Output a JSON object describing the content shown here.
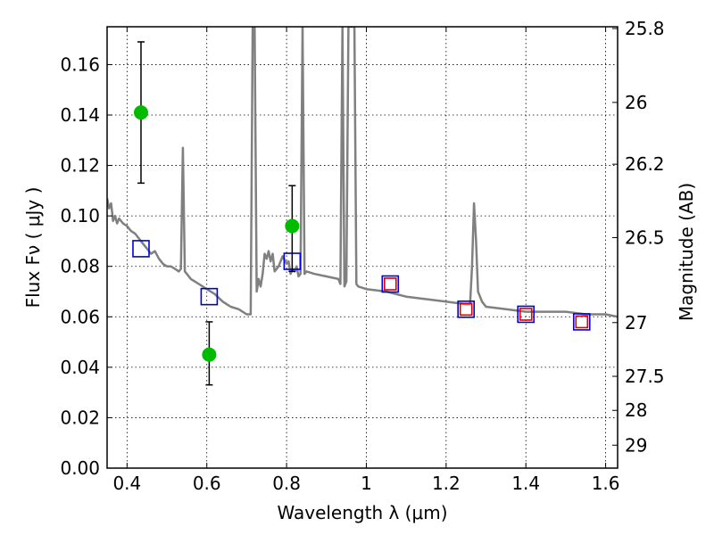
{
  "chart_data": {
    "type": "scatter",
    "xlabel": "Wavelength  λ (μm)",
    "ylabel": "Flux  Fν  ( μJy )",
    "ylabel_right": "Magnitude (AB)",
    "xlim": [
      0.35,
      1.63
    ],
    "ylim": [
      0.0,
      0.175
    ],
    "grid": true,
    "x_ticks": [
      0.4,
      0.6,
      0.8,
      1.0,
      1.2,
      1.4,
      1.6
    ],
    "x_tick_labels": [
      "0.4",
      "0.6",
      "0.8",
      "1",
      "1.2",
      "1.4",
      "1.6"
    ],
    "y_ticks": [
      0.0,
      0.02,
      0.04,
      0.06,
      0.08,
      0.1,
      0.12,
      0.14,
      0.16
    ],
    "y_tick_labels": [
      "0.00",
      "0.02",
      "0.04",
      "0.06",
      "0.08",
      "0.10",
      "0.12",
      "0.14",
      "0.16"
    ],
    "right_ticks": [
      {
        "label": "25.8",
        "flux": 0.1743
      },
      {
        "label": "26",
        "flux": 0.145
      },
      {
        "label": "26.2",
        "flux": 0.1205
      },
      {
        "label": "26.5",
        "flux": 0.0914
      },
      {
        "label": "27",
        "flux": 0.0577
      },
      {
        "label": "27.5",
        "flux": 0.0364
      },
      {
        "label": "28",
        "flux": 0.0229
      },
      {
        "label": "29",
        "flux": 0.0091
      }
    ],
    "series": [
      {
        "style": "line",
        "color": "#808080",
        "points": [
          [
            0.35,
            0.107
          ],
          [
            0.355,
            0.103
          ],
          [
            0.36,
            0.105
          ],
          [
            0.365,
            0.098
          ],
          [
            0.37,
            0.1
          ],
          [
            0.375,
            0.097
          ],
          [
            0.38,
            0.099
          ],
          [
            0.39,
            0.097
          ],
          [
            0.4,
            0.096
          ],
          [
            0.41,
            0.094
          ],
          [
            0.42,
            0.093
          ],
          [
            0.43,
            0.091
          ],
          [
            0.44,
            0.089
          ],
          [
            0.45,
            0.087
          ],
          [
            0.46,
            0.085
          ],
          [
            0.47,
            0.086
          ],
          [
            0.48,
            0.083
          ],
          [
            0.49,
            0.081
          ],
          [
            0.5,
            0.08
          ],
          [
            0.51,
            0.08
          ],
          [
            0.52,
            0.079
          ],
          [
            0.53,
            0.078
          ],
          [
            0.535,
            0.079
          ],
          [
            0.54,
            0.127
          ],
          [
            0.545,
            0.078
          ],
          [
            0.55,
            0.077
          ],
          [
            0.56,
            0.075
          ],
          [
            0.57,
            0.074
          ],
          [
            0.58,
            0.073
          ],
          [
            0.6,
            0.071
          ],
          [
            0.62,
            0.069
          ],
          [
            0.64,
            0.066
          ],
          [
            0.66,
            0.064
          ],
          [
            0.68,
            0.063
          ],
          [
            0.7,
            0.061
          ],
          [
            0.71,
            0.061
          ],
          [
            0.715,
            0.175
          ],
          [
            0.72,
            0.175
          ],
          [
            0.725,
            0.07
          ],
          [
            0.73,
            0.075
          ],
          [
            0.735,
            0.072
          ],
          [
            0.74,
            0.077
          ],
          [
            0.745,
            0.085
          ],
          [
            0.75,
            0.083
          ],
          [
            0.755,
            0.086
          ],
          [
            0.76,
            0.082
          ],
          [
            0.765,
            0.085
          ],
          [
            0.77,
            0.078
          ],
          [
            0.78,
            0.08
          ],
          [
            0.79,
            0.084
          ],
          [
            0.8,
            0.081
          ],
          [
            0.805,
            0.082
          ],
          [
            0.81,
            0.077
          ],
          [
            0.815,
            0.079
          ],
          [
            0.82,
            0.078
          ],
          [
            0.825,
            0.08
          ],
          [
            0.83,
            0.076
          ],
          [
            0.835,
            0.077
          ],
          [
            0.84,
            0.175
          ],
          [
            0.845,
            0.077
          ],
          [
            0.85,
            0.078
          ],
          [
            0.87,
            0.077
          ],
          [
            0.9,
            0.076
          ],
          [
            0.93,
            0.075
          ],
          [
            0.935,
            0.073
          ],
          [
            0.94,
            0.175
          ],
          [
            0.945,
            0.072
          ],
          [
            0.95,
            0.074
          ],
          [
            0.955,
            0.175
          ],
          [
            0.96,
            0.175
          ],
          [
            0.965,
            0.175
          ],
          [
            0.97,
            0.175
          ],
          [
            0.975,
            0.073
          ],
          [
            0.98,
            0.072
          ],
          [
            1.0,
            0.071
          ],
          [
            1.05,
            0.07
          ],
          [
            1.1,
            0.068
          ],
          [
            1.15,
            0.067
          ],
          [
            1.2,
            0.066
          ],
          [
            1.25,
            0.065
          ],
          [
            1.26,
            0.065
          ],
          [
            1.265,
            0.08
          ],
          [
            1.27,
            0.105
          ],
          [
            1.275,
            0.09
          ],
          [
            1.28,
            0.07
          ],
          [
            1.29,
            0.066
          ],
          [
            1.3,
            0.064
          ],
          [
            1.35,
            0.063
          ],
          [
            1.4,
            0.062
          ],
          [
            1.45,
            0.062
          ],
          [
            1.5,
            0.062
          ],
          [
            1.55,
            0.061
          ],
          [
            1.6,
            0.061
          ],
          [
            1.63,
            0.06
          ]
        ]
      },
      {
        "style": "errorbar",
        "color": "#00bb00",
        "points": [
          {
            "x": 0.435,
            "y": 0.141,
            "lo": 0.113,
            "hi": 0.169
          },
          {
            "x": 0.606,
            "y": 0.045,
            "lo": 0.033,
            "hi": 0.058
          },
          {
            "x": 0.814,
            "y": 0.096,
            "lo": 0.078,
            "hi": 0.112
          }
        ]
      },
      {
        "style": "open-square",
        "color": "#0000dd",
        "points": [
          [
            0.435,
            0.087
          ],
          [
            0.606,
            0.068
          ],
          [
            0.814,
            0.082
          ],
          [
            1.06,
            0.073
          ],
          [
            1.25,
            0.063
          ],
          [
            1.4,
            0.061
          ],
          [
            1.54,
            0.058
          ]
        ]
      },
      {
        "style": "open-square",
        "color": "#dd0000",
        "points": [
          [
            1.06,
            0.073
          ],
          [
            1.25,
            0.063
          ],
          [
            1.4,
            0.061
          ],
          [
            1.54,
            0.058
          ]
        ]
      }
    ]
  }
}
